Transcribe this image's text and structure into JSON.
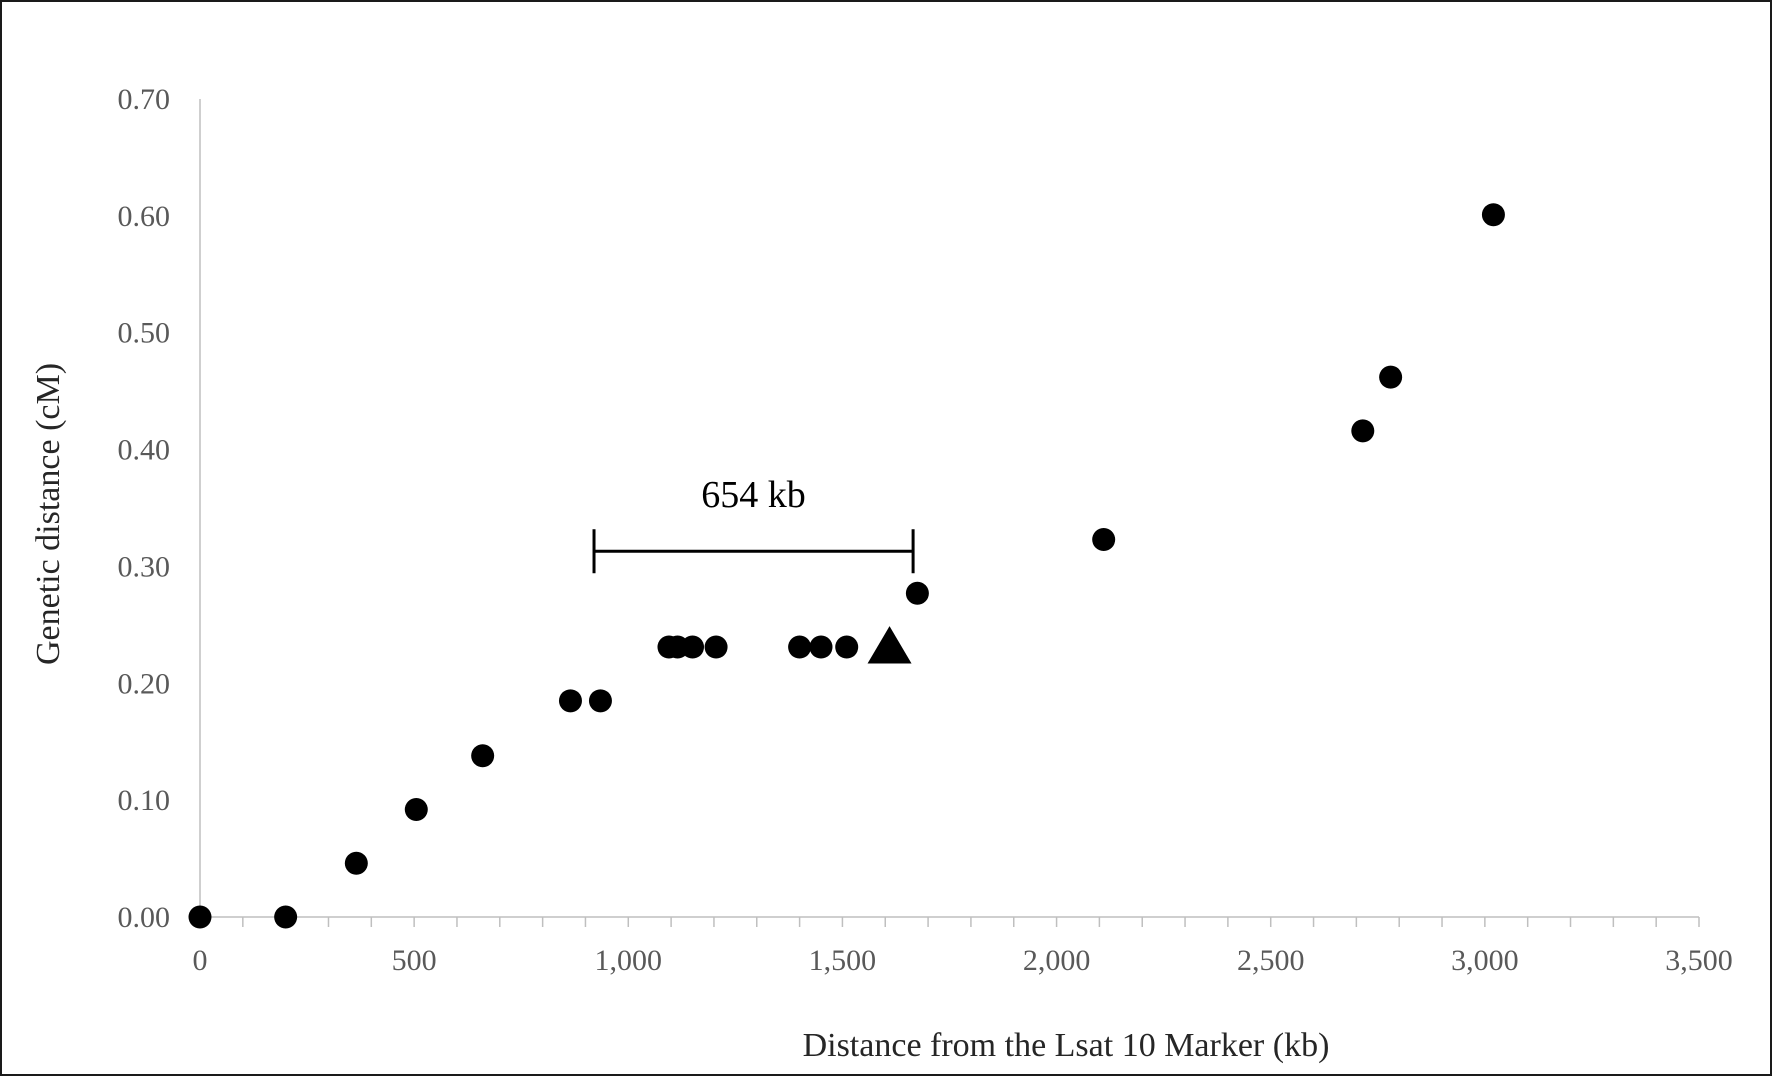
{
  "chart_data": {
    "type": "scatter",
    "title": "",
    "xlabel": "Distance from the Lsat 10 Marker (kb)",
    "ylabel": "Genetic distance (cM)",
    "xlim": [
      0,
      3500
    ],
    "ylim": [
      0,
      0.7
    ],
    "x_ticks": [
      "0",
      "500",
      "1,000",
      "1,500",
      "2,000",
      "2,500",
      "3,000",
      "3,500"
    ],
    "x_tick_values": [
      0,
      500,
      1000,
      1500,
      2000,
      2500,
      3000,
      3500
    ],
    "y_ticks": [
      "0.00",
      "0.10",
      "0.20",
      "0.30",
      "0.40",
      "0.50",
      "0.60",
      "0.70"
    ],
    "y_tick_values": [
      0,
      0.1,
      0.2,
      0.3,
      0.4,
      0.5,
      0.6,
      0.7
    ],
    "x_minor_step": 100,
    "grid": false,
    "legend": "none",
    "series": [
      {
        "marker": "circle",
        "points": [
          {
            "x": 0,
            "y": 0.0
          },
          {
            "x": 200,
            "y": 0.0
          },
          {
            "x": 365,
            "y": 0.046
          },
          {
            "x": 505,
            "y": 0.092
          },
          {
            "x": 660,
            "y": 0.138
          },
          {
            "x": 865,
            "y": 0.185
          },
          {
            "x": 935,
            "y": 0.185
          },
          {
            "x": 1095,
            "y": 0.231
          },
          {
            "x": 1115,
            "y": 0.231
          },
          {
            "x": 1150,
            "y": 0.231
          },
          {
            "x": 1205,
            "y": 0.231
          },
          {
            "x": 1400,
            "y": 0.231
          },
          {
            "x": 1450,
            "y": 0.231
          },
          {
            "x": 1510,
            "y": 0.231
          },
          {
            "x": 1675,
            "y": 0.277
          },
          {
            "x": 2110,
            "y": 0.323
          },
          {
            "x": 2715,
            "y": 0.416
          },
          {
            "x": 2780,
            "y": 0.462
          },
          {
            "x": 3020,
            "y": 0.601
          }
        ]
      },
      {
        "marker": "triangle",
        "points": [
          {
            "x": 1610,
            "y": 0.231
          }
        ]
      }
    ],
    "annotations": [
      {
        "type": "interval",
        "text": "654 kb",
        "x_start": 920,
        "x_end": 1665,
        "y": 0.313
      }
    ]
  },
  "colors": {
    "marker": "#000000",
    "axis": "#bfbfbf",
    "tick_label": "#595959",
    "axis_title": "#262626",
    "frame": "#1a1a1a"
  }
}
